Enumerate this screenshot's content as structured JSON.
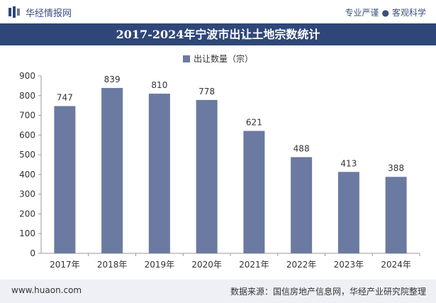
{
  "header": {
    "site_name": "华经情报网",
    "slogan_left": "专业严谨",
    "slogan_right": "客观科学"
  },
  "footer": {
    "url": "www.huaon.com",
    "source": "数据来源：国信房地产信息网，华经产业研究院整理"
  },
  "colors": {
    "bar": "#6b7aa1",
    "title_bg": "#2f4778"
  },
  "chart_data": {
    "type": "bar",
    "title": "2017-2024年宁波市出让土地宗数统计",
    "categories": [
      "2017年",
      "2018年",
      "2019年",
      "2020年",
      "2021年",
      "2022年",
      "2023年",
      "2024年"
    ],
    "series": [
      {
        "name": "出让数量（宗）",
        "values": [
          747,
          839,
          810,
          778,
          621,
          488,
          413,
          388
        ]
      }
    ],
    "ylim": [
      0,
      900
    ],
    "yticks": [
      0,
      100,
      200,
      300,
      400,
      500,
      600,
      700,
      800,
      900
    ],
    "grid": false,
    "legend": "top-center",
    "xlabel": "",
    "ylabel": ""
  }
}
